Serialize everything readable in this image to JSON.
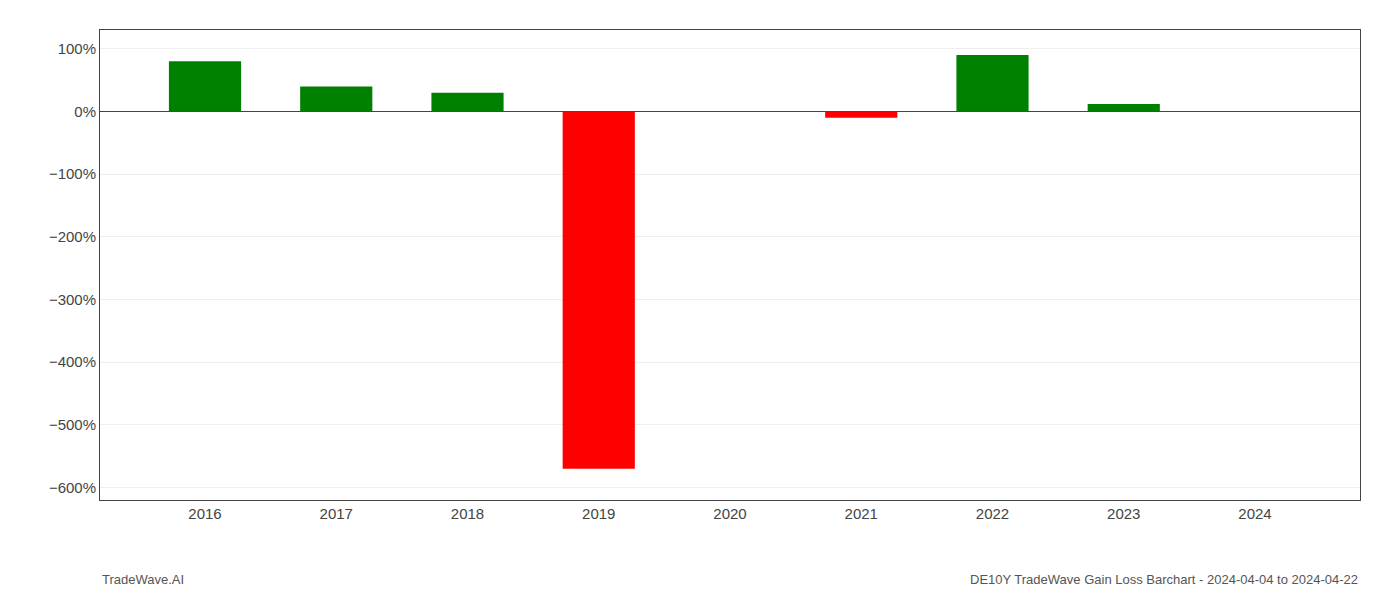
{
  "chart_data": {
    "type": "bar",
    "x": [
      2016,
      2017,
      2018,
      2019,
      2020,
      2021,
      2022,
      2023,
      2024
    ],
    "values": [
      80,
      40,
      30,
      -570,
      0,
      -10,
      90,
      12,
      0
    ],
    "colors": [
      "#008000",
      "#008000",
      "#008000",
      "#ff0000",
      "#008000",
      "#ff0000",
      "#008000",
      "#008000",
      "#008000"
    ],
    "xlim": [
      2015.2,
      2024.8
    ],
    "xticks": [
      2016,
      2017,
      2018,
      2019,
      2020,
      2021,
      2022,
      2023,
      2024
    ],
    "ylim": [
      -620,
      130
    ],
    "yticks": [
      {
        "value": 100,
        "label": "100%"
      },
      {
        "value": 0,
        "label": "0%"
      },
      {
        "value": -100,
        "label": "−100%"
      },
      {
        "value": -200,
        "label": "−200%"
      },
      {
        "value": -300,
        "label": "−300%"
      },
      {
        "value": -400,
        "label": "−400%"
      },
      {
        "value": -500,
        "label": "−500%"
      },
      {
        "value": -600,
        "label": "−600%"
      }
    ],
    "annotations": [
      "TradeWave.AI",
      "DE10Y TradeWave Gain Loss Barchart - 2024-04-04 to 2024-04-22"
    ],
    "grid": true
  }
}
